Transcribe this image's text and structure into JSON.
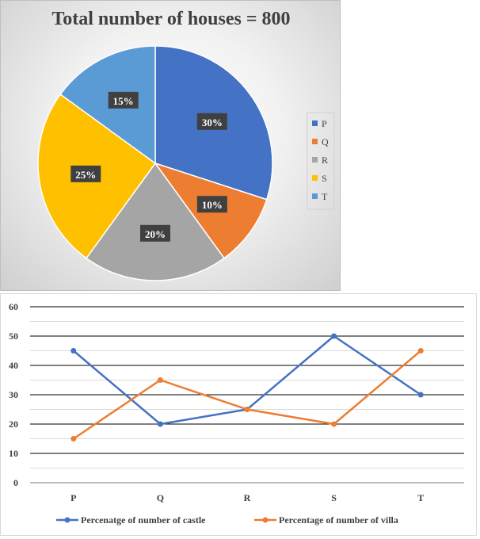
{
  "chart_data": [
    {
      "type": "pie",
      "title": "Total number of houses = 800",
      "legend_position": "right",
      "slices": [
        {
          "label": "P",
          "value": 30,
          "value_label": "30%",
          "color": "#4472C4"
        },
        {
          "label": "Q",
          "value": 10,
          "value_label": "10%",
          "color": "#ED7D31"
        },
        {
          "label": "R",
          "value": 20,
          "value_label": "20%",
          "color": "#A5A5A5"
        },
        {
          "label": "S",
          "value": 25,
          "value_label": "25%",
          "color": "#FFC000"
        },
        {
          "label": "T",
          "value": 15,
          "value_label": "15%",
          "color": "#5B9BD5"
        }
      ]
    },
    {
      "type": "line",
      "title": "",
      "xlabel": "",
      "ylabel": "",
      "categories": [
        "P",
        "Q",
        "R",
        "S",
        "T"
      ],
      "ylim": [
        0,
        60
      ],
      "yticks": [
        0,
        10,
        20,
        30,
        40,
        50,
        60
      ],
      "grid": true,
      "legend_position": "bottom",
      "series": [
        {
          "name": "Percenatge of number of castle",
          "values": [
            45,
            20,
            25,
            50,
            30
          ],
          "color": "#4472C4"
        },
        {
          "name": "Percentage of number of villa",
          "values": [
            15,
            35,
            25,
            20,
            45
          ],
          "color": "#ED7D31"
        }
      ]
    }
  ]
}
